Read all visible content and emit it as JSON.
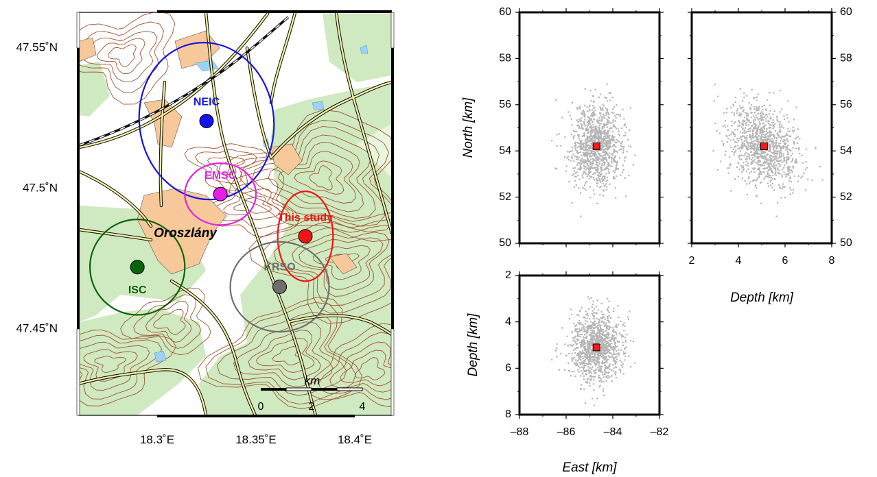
{
  "colors": {
    "forest": "#cfe9c0",
    "forest_light": "#dff1d6",
    "town": "#f7c99a",
    "contour": "#a0522d",
    "road": "#111111",
    "water": "#9cd3f5",
    "scatter": "#b4b4b4",
    "hypocenter": "#ff1a1a",
    "neic": "#1414e6",
    "emsc": "#e61ee6",
    "study": "#f01414",
    "isc": "#0a640a",
    "krso": "#6e6e6e"
  },
  "map": {
    "town_label": "Oroszlány",
    "lat_ticks": [
      {
        "value": 47.55,
        "label": "47.55˚N"
      },
      {
        "value": 47.5,
        "label": "47.5˚N"
      },
      {
        "value": 47.45,
        "label": "47.45˚N"
      }
    ],
    "lon_ticks": [
      {
        "value": 18.3,
        "label": "18.3˚E"
      },
      {
        "value": 18.35,
        "label": "18.35˚E"
      },
      {
        "value": 18.4,
        "label": "18.4˚E"
      }
    ],
    "scalebar": {
      "unit": "km",
      "labels": [
        "0",
        "2",
        "4"
      ]
    },
    "solutions": [
      {
        "id": "neic",
        "label": "NEIC",
        "lon": 18.325,
        "lat": 47.524,
        "color": "#1414e6"
      },
      {
        "id": "emsc",
        "label": "EMSC",
        "lon": 18.332,
        "lat": 47.498,
        "color": "#e61ee6"
      },
      {
        "id": "study",
        "label": "This study",
        "lon": 18.375,
        "lat": 47.483,
        "color": "#f01414"
      },
      {
        "id": "isc",
        "label": "ISC",
        "lon": 18.29,
        "lat": 47.472,
        "color": "#0a640a"
      },
      {
        "id": "krso",
        "label": "KRSO",
        "lon": 18.362,
        "lat": 47.465,
        "color": "#6e6e6e"
      }
    ]
  },
  "chart_data": [
    {
      "type": "scatter",
      "xlabel": "",
      "ylabel": "North [km]",
      "xlim": [
        -88,
        -82
      ],
      "ylim": [
        50,
        60
      ],
      "yticks": [
        50,
        52,
        54,
        56,
        58,
        60
      ],
      "best": {
        "x": -84.7,
        "y": 54.2
      }
    },
    {
      "type": "scatter",
      "xlabel": "Depth [km]",
      "ylabel": "",
      "xlim": [
        2,
        8
      ],
      "ylim": [
        50,
        60
      ],
      "xticks": [
        2,
        4,
        6,
        8
      ],
      "yticks": [
        50,
        52,
        54,
        56,
        58,
        60
      ],
      "best": {
        "x": 5.1,
        "y": 54.2
      }
    },
    {
      "type": "scatter",
      "xlabel": "East [km]",
      "ylabel": "Depth [km]",
      "xlim": [
        -88,
        -82
      ],
      "ylim": [
        2,
        8
      ],
      "xticks": [
        -88,
        -86,
        -84,
        -82
      ],
      "yticks": [
        2,
        4,
        6,
        8
      ],
      "best": {
        "x": -84.7,
        "y": 5.1
      }
    }
  ]
}
